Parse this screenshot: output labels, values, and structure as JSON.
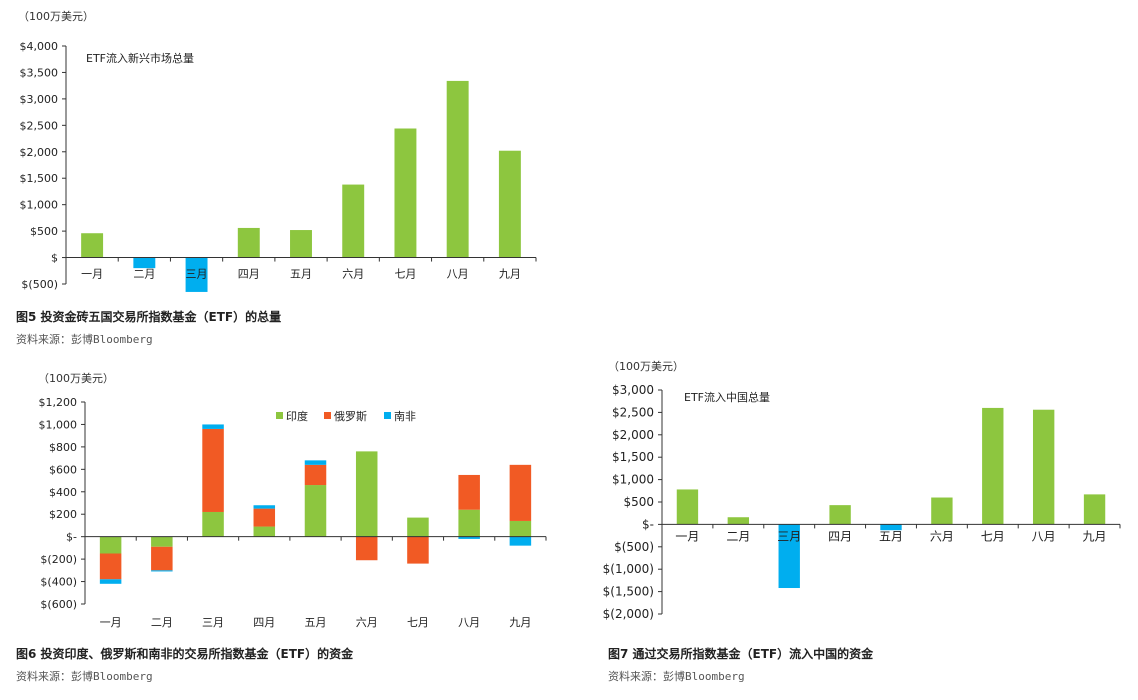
{
  "colors": {
    "green": "#8DC63F",
    "red": "#F15A24",
    "blue": "#00AEEF",
    "axis": "#333333"
  },
  "fig5": {
    "unit": "（100万美元）",
    "caption": "图5 投资金砖五国交易所指数基金（ETF）的总量",
    "source": "资料来源：彭博Bloomberg"
  },
  "fig6": {
    "unit": "（100万美元）",
    "caption": "图6 投资印度、俄罗斯和南非的交易所指数基金（ETF）的资金",
    "source": "资料来源：彭博Bloomberg"
  },
  "fig7": {
    "unit": "（100万美元）",
    "caption": "图7 通过交易所指数基金（ETF）流入中国的资金",
    "source": "资料来源：彭博Bloomberg"
  },
  "chart_data": [
    {
      "id": "fig5",
      "type": "bar",
      "annotation": "ETF流入新兴市场总量",
      "categories": [
        "一月",
        "二月",
        "三月",
        "四月",
        "五月",
        "六月",
        "七月",
        "八月",
        "九月"
      ],
      "series": [
        {
          "values": [
            460,
            -200,
            -650,
            560,
            520,
            1380,
            2440,
            3340,
            2020
          ],
          "color": "#8DC63F",
          "negative_color": "#00AEEF"
        }
      ],
      "ylim": [
        -500,
        4000
      ],
      "yticks": [
        4000,
        3500,
        3000,
        2500,
        2000,
        1500,
        1000,
        500,
        0,
        -500
      ],
      "ytick_labels": [
        "$4,000",
        "$3,500",
        "$3,000",
        "$2,500",
        "$2,000",
        "$1,500",
        "$1,000",
        "$500",
        "$",
        "$(500)"
      ]
    },
    {
      "id": "fig6",
      "type": "bar",
      "stacked": true,
      "categories": [
        "一月",
        "二月",
        "三月",
        "四月",
        "五月",
        "六月",
        "七月",
        "八月",
        "九月"
      ],
      "series": [
        {
          "name": "印度",
          "color": "#8DC63F",
          "values": [
            -150,
            -90,
            220,
            90,
            460,
            760,
            170,
            240,
            140
          ]
        },
        {
          "name": "俄罗斯",
          "color": "#F15A24",
          "values": [
            -230,
            -210,
            740,
            160,
            180,
            -210,
            -240,
            310,
            500
          ]
        },
        {
          "name": "南非",
          "color": "#00AEEF",
          "values": [
            -40,
            -10,
            40,
            30,
            40,
            0,
            0,
            -20,
            -80
          ]
        }
      ],
      "ylim": [
        -600,
        1200
      ],
      "yticks": [
        1200,
        1000,
        800,
        600,
        400,
        200,
        0,
        -200,
        -400,
        -600
      ],
      "ytick_labels": [
        "$1,200",
        "$1,000",
        "$800",
        "$600",
        "$400",
        "$200",
        "$-",
        "$(200)",
        "$(400)",
        "$(600)"
      ],
      "legend": "top-right"
    },
    {
      "id": "fig7",
      "type": "bar",
      "annotation": "ETF流入中国总量",
      "categories": [
        "一月",
        "二月",
        "三月",
        "四月",
        "五月",
        "六月",
        "七月",
        "八月",
        "九月"
      ],
      "series": [
        {
          "values": [
            780,
            160,
            -1420,
            430,
            -130,
            600,
            2600,
            2560,
            670
          ],
          "color": "#8DC63F",
          "negative_color": "#00AEEF"
        }
      ],
      "ylim": [
        -2000,
        3000
      ],
      "yticks": [
        3000,
        2500,
        2000,
        1500,
        1000,
        500,
        0,
        -500,
        -1000,
        -1500,
        -2000
      ],
      "ytick_labels": [
        "$3,000",
        "$2,500",
        "$2,000",
        "$1,500",
        "$1,000",
        "$500",
        "$-",
        "$(500)",
        "$(1,000)",
        "$(1,500)",
        "$(2,000)"
      ]
    }
  ]
}
